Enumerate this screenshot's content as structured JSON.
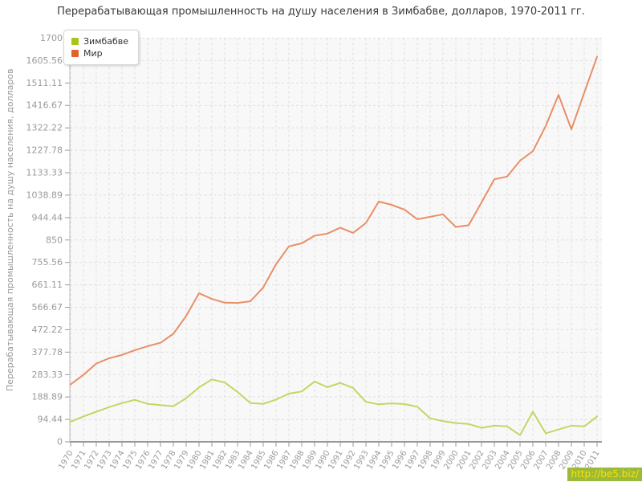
{
  "title": "Перерабатывающая промышленность на душу населения в Зимбабве, долларов, 1970-2011 гг.",
  "y_axis_title": "Перерабатывающая промышленность на душу населения, долларов",
  "watermark": "http://be5.biz/",
  "legend": {
    "items": [
      {
        "label": "Зимбабве",
        "marker_color": "#a9c41f"
      },
      {
        "label": "Мир",
        "marker_color": "#e2622c"
      }
    ]
  },
  "colors": {
    "grid": "#dedede",
    "axis": "#999999",
    "tick_text": "#9a9a9a",
    "plot_bg": "#f9f8f8",
    "title_text": "#3a3a3a"
  },
  "chart_data": {
    "type": "line",
    "title": "Перерабатывающая промышленность на душу населения в Зимбабве, долларов, 1970-2011 гг.",
    "xlabel": "",
    "ylabel": "Перерабатывающая промышленность на душу населения, долларов",
    "ylim": [
      0,
      1700
    ],
    "grid": "dashed",
    "legend_position": "top-left",
    "y_ticks": [
      {
        "value": 0,
        "label": "0"
      },
      {
        "value": 94.44,
        "label": "94.44"
      },
      {
        "value": 188.89,
        "label": "188.89"
      },
      {
        "value": 283.33,
        "label": "283.33"
      },
      {
        "value": 377.78,
        "label": "377.78"
      },
      {
        "value": 472.22,
        "label": "472.22"
      },
      {
        "value": 566.67,
        "label": "566.67"
      },
      {
        "value": 661.11,
        "label": "661.11"
      },
      {
        "value": 755.56,
        "label": "755.56"
      },
      {
        "value": 850,
        "label": "850"
      },
      {
        "value": 944.44,
        "label": "944.44"
      },
      {
        "value": 1038.89,
        "label": "1038.89"
      },
      {
        "value": 1133.33,
        "label": "1133.33"
      },
      {
        "value": 1227.78,
        "label": "1227.78"
      },
      {
        "value": 1322.22,
        "label": "1322.22"
      },
      {
        "value": 1416.67,
        "label": "1416.67"
      },
      {
        "value": 1511.11,
        "label": "1511.11"
      },
      {
        "value": 1605.56,
        "label": "1605.56"
      },
      {
        "value": 1700,
        "label": "1700"
      }
    ],
    "x": [
      1970,
      1971,
      1972,
      1973,
      1974,
      1975,
      1976,
      1977,
      1978,
      1979,
      1980,
      1981,
      1982,
      1983,
      1984,
      1985,
      1986,
      1987,
      1988,
      1989,
      1990,
      1991,
      1992,
      1993,
      1994,
      1995,
      1996,
      1997,
      1998,
      1999,
      2000,
      2001,
      2002,
      2003,
      2004,
      2005,
      2006,
      2007,
      2008,
      2009,
      2010,
      2011
    ],
    "series": [
      {
        "name": "Зимбабве",
        "line_color": "#c3d664",
        "values": [
          85,
          107,
          127,
          146,
          163,
          177,
          160,
          155,
          150,
          184,
          229,
          263,
          250,
          210,
          163,
          160,
          178,
          203,
          212,
          254,
          230,
          248,
          227,
          168,
          158,
          162,
          159,
          148,
          99,
          87,
          79,
          75,
          59,
          68,
          65,
          28,
          127,
          36,
          52,
          68,
          65,
          107
        ]
      },
      {
        "name": "Мир",
        "line_color": "#e98e66",
        "values": [
          242,
          282,
          330,
          352,
          366,
          386,
          403,
          417,
          455,
          530,
          626,
          602,
          586,
          585,
          592,
          650,
          748,
          823,
          836,
          868,
          877,
          902,
          880,
          922,
          1012,
          998,
          978,
          937,
          948,
          958,
          905,
          912,
          1008,
          1106,
          1117,
          1184,
          1224,
          1330,
          1461,
          1316,
          1470,
          1622
        ]
      }
    ]
  }
}
